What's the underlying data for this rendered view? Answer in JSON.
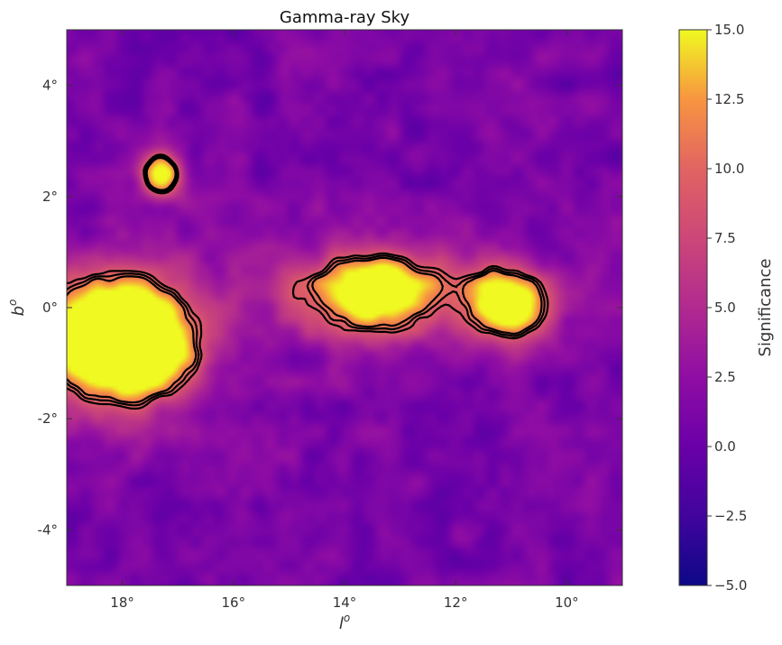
{
  "chart_data": {
    "type": "heatmap",
    "title": "Gamma-ray Sky",
    "xlabel": "l",
    "xlabel_sup": "o",
    "ylabel": "b",
    "ylabel_sup": "o",
    "xlim": [
      19,
      9
    ],
    "ylim": [
      -5,
      5
    ],
    "x_ticks": [
      {
        "value": 18,
        "label": "18°"
      },
      {
        "value": 16,
        "label": "16°"
      },
      {
        "value": 14,
        "label": "14°"
      },
      {
        "value": 12,
        "label": "12°"
      },
      {
        "value": 10,
        "label": "10°"
      }
    ],
    "y_ticks": [
      {
        "value": 4,
        "label": "4°"
      },
      {
        "value": 2,
        "label": "2°"
      },
      {
        "value": 0,
        "label": "0°"
      },
      {
        "value": -2,
        "label": "-2°"
      },
      {
        "value": -4,
        "label": "-4°"
      }
    ],
    "colormap": "plasma",
    "colorbar": {
      "label": "Significance",
      "range": [
        -5,
        15
      ],
      "ticks": [
        {
          "value": 15,
          "label": "15.0"
        },
        {
          "value": 12.5,
          "label": "12.5"
        },
        {
          "value": 10,
          "label": "10.0"
        },
        {
          "value": 7.5,
          "label": "7.5"
        },
        {
          "value": 5,
          "label": "5.0"
        },
        {
          "value": 2.5,
          "label": "2.5"
        },
        {
          "value": 0,
          "label": "0.0"
        },
        {
          "value": -2.5,
          "label": "−2.5"
        },
        {
          "value": -5,
          "label": "−5.0"
        }
      ]
    },
    "sources": [
      {
        "l": 18.0,
        "b": -0.6,
        "sigma_l": 0.85,
        "sigma_b": 0.75,
        "peak": 28
      },
      {
        "l": 13.4,
        "b": 0.3,
        "sigma_l": 0.85,
        "sigma_b": 0.45,
        "peak": 19
      },
      {
        "l": 11.1,
        "b": 0.05,
        "sigma_l": 0.5,
        "sigma_b": 0.45,
        "peak": 18
      },
      {
        "l": 17.3,
        "b": 2.4,
        "sigma_l": 0.28,
        "sigma_b": 0.3,
        "peak": 15
      }
    ],
    "background_level": 1.0,
    "contour_levels": [
      9,
      10,
      11
    ],
    "contour_color": "#000000"
  }
}
